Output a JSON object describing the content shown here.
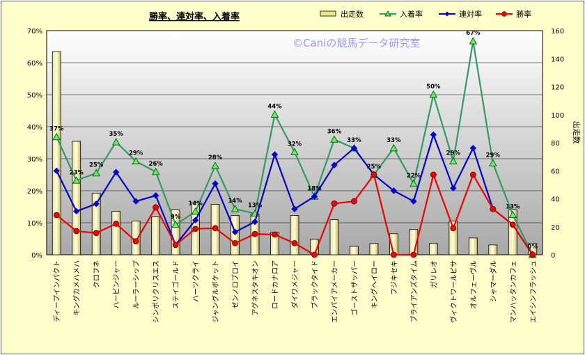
{
  "chart_data": {
    "type": "bar-line-combo",
    "title": "勝率、連対率、入着率",
    "watermark": "©Caniの競馬データ研究室",
    "y_left": {
      "ticks": [
        "0%",
        "10%",
        "20%",
        "30%",
        "40%",
        "50%",
        "60%",
        "70%"
      ],
      "lim": [
        0,
        70
      ]
    },
    "y_right": {
      "label": "出走数",
      "ticks": [
        "0",
        "20",
        "40",
        "60",
        "80",
        "100",
        "120",
        "140",
        "160"
      ],
      "lim": [
        0,
        160
      ]
    },
    "categories": [
      "ディープインパクト",
      "キングカメハメハ",
      "クロフネ",
      "ハービンジャー",
      "ルーラーシップ",
      "シンボリクリスエス",
      "ステイゴールド",
      "ハーツクライ",
      "ジャングルポケット",
      "ゼンノロブロイ",
      "アグネスタキオン",
      "ロードカナロア",
      "ダイワメジャー",
      "ブラックタイド",
      "エンパイアメーカー",
      "ゴーストザッパー",
      "キングヘイロー",
      "フジキセキ",
      "ブライアンズタイム",
      "ガリレオ",
      "ヴィクトワールピサ",
      "オルフェーヴル",
      "シャマーダル",
      "マンハッタンカフェ",
      "エイシンフラッシュ"
    ],
    "series": [
      {
        "name": "出走数",
        "axis": "right",
        "kind": "bar",
        "color": "#f0e68c",
        "values": [
          145,
          81,
          44,
          31,
          24,
          27,
          32,
          37,
          36,
          28,
          29,
          16,
          28,
          11,
          25,
          6,
          8,
          15,
          18,
          8,
          24,
          12,
          7,
          32,
          8
        ]
      },
      {
        "name": "入着率",
        "axis": "left",
        "kind": "line",
        "color": "#339966",
        "values": [
          36.8,
          23.2,
          25.5,
          35.2,
          29.2,
          25.9,
          9.4,
          13.5,
          27.8,
          14.3,
          12.9,
          43.8,
          32.1,
          18.2,
          36.0,
          33.3,
          25.0,
          33.3,
          22.2,
          50.0,
          29.2,
          66.7,
          28.6,
          12.5,
          0
        ]
      },
      {
        "name": "連対率",
        "axis": "left",
        "kind": "line",
        "color": "#0000cc",
        "values": [
          26.2,
          13.6,
          15.9,
          25.8,
          16.7,
          18.5,
          3.1,
          10.8,
          22.2,
          7.1,
          10.3,
          31.3,
          14.3,
          18.2,
          28.0,
          33.3,
          25.0,
          20.0,
          16.7,
          37.5,
          20.8,
          33.3,
          14.3,
          9.4,
          0
        ]
      },
      {
        "name": "勝率",
        "axis": "left",
        "kind": "line",
        "color": "#ee0000",
        "values": [
          12.4,
          7.4,
          6.8,
          9.7,
          4.2,
          14.8,
          3.1,
          8.1,
          8.3,
          3.6,
          6.5,
          6.3,
          3.6,
          0,
          16.0,
          16.7,
          25.0,
          0,
          0,
          25.0,
          8.3,
          25.0,
          14.3,
          9.4,
          0
        ]
      }
    ],
    "data_labels": [
      "37%",
      "23%",
      "25%",
      "35%",
      "29%",
      "26%",
      "9%",
      "14%",
      "28%",
      "14%",
      "13%",
      "44%",
      "32%",
      "18%",
      "36%",
      "33%",
      "25%",
      "33%",
      "22%",
      "50%",
      "29%",
      "67%",
      "29%",
      "13%",
      "0%"
    ],
    "legend": {
      "position": "top-right",
      "items": [
        "出走数",
        "入着率",
        "連対率",
        "勝率"
      ]
    }
  }
}
